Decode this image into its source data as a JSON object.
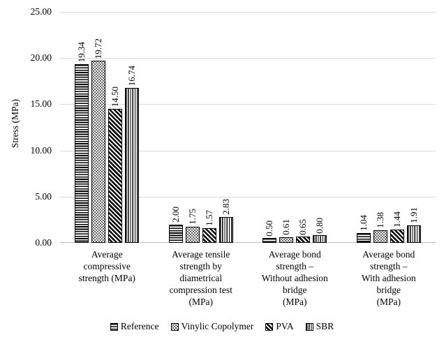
{
  "chart_data": {
    "type": "bar",
    "title": "",
    "ylabel": "Stress (MPa)",
    "xlabel": "",
    "ylim": [
      0,
      25
    ],
    "yticks": [
      0,
      5,
      10,
      15,
      20,
      25
    ],
    "ytick_labels": [
      "0.00",
      "5.00",
      "10.00",
      "15.00",
      "20.00",
      "25.00"
    ],
    "grid": true,
    "legend_position": "bottom",
    "categories": [
      {
        "label": "Average compressive strength (MPa)",
        "lines": "Average\ncompressive\nstrength (MPa)"
      },
      {
        "label": "Average tensile strength by diametrical compression test (MPa)",
        "lines": "Average tensile\nstrength by\ndiametrical\ncompression test\n(MPa)"
      },
      {
        "label": "Average bond strength – Without adhesion bridge (MPa)",
        "lines": "Average bond\nstrength –\nWithout adhesion\nbridge\n(MPa)"
      },
      {
        "label": "Average bond strength – With adhesion bridge (MPa)",
        "lines": "Average bond\nstrength –\nWith adhesion\nbridge\n(MPa)"
      }
    ],
    "series": [
      {
        "name": "Reference",
        "pattern": "horizontal-lines",
        "values": [
          19.34,
          2.0,
          0.5,
          1.04
        ]
      },
      {
        "name": "Vinylic Copolymer",
        "pattern": "dots",
        "values": [
          19.72,
          1.75,
          0.61,
          1.38
        ]
      },
      {
        "name": "PVA",
        "pattern": "diagonal-lines",
        "values": [
          14.5,
          1.57,
          0.65,
          1.44
        ]
      },
      {
        "name": "SBR",
        "pattern": "vertical-lines",
        "values": [
          16.74,
          2.83,
          0.8,
          1.91
        ]
      }
    ],
    "value_labels": [
      [
        "19.34",
        "19.72",
        "14.50",
        "16.74"
      ],
      [
        "2.00",
        "1.75",
        "1.57",
        "2.83"
      ],
      [
        "0.50",
        "0.61",
        "0.65",
        "0.80"
      ],
      [
        "1.04",
        "1.38",
        "1.44",
        "1.91"
      ]
    ],
    "colors": {
      "bar_fill": "#ffffff",
      "bar_stroke": "#000000",
      "gridline": "#d9d9d9",
      "axis_line": "#bfbfbf",
      "text": "#000000",
      "background": "#ffffff"
    }
  }
}
